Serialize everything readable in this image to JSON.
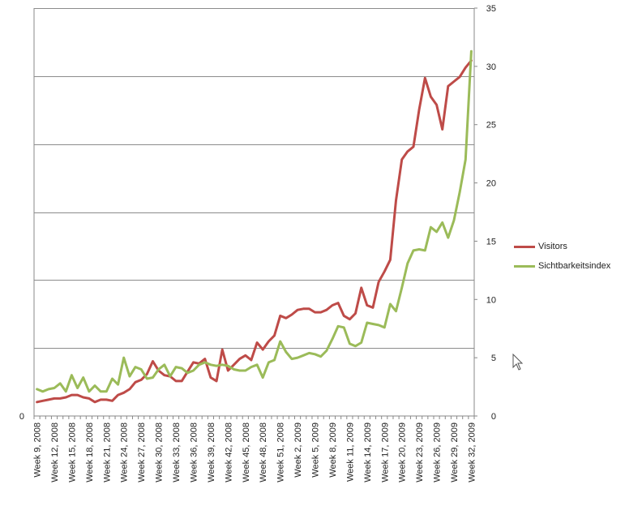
{
  "chart_data": {
    "type": "line",
    "title": "",
    "xlabel": "",
    "ylabel": "",
    "grid": true,
    "legend_position": "right",
    "y_left": {
      "range": [
        0,
        35
      ],
      "ticks": [
        {
          "value": 0,
          "label": "0"
        }
      ]
    },
    "y_right": {
      "range": [
        0,
        35
      ],
      "ticks": [
        0,
        5,
        10,
        15,
        20,
        25,
        30,
        35
      ]
    },
    "grid_lines": [
      5.8333,
      11.6667,
      17.5,
      23.3333,
      29.1667,
      35
    ],
    "x_labels": [
      "Week 9, 2008",
      "Week 12, 2008",
      "Week 15, 2008",
      "Week 18, 2008",
      "Week 21, 2008",
      "Week 24, 2008",
      "Week 27, 2008",
      "Week 30, 2008",
      "Week 33, 2008",
      "Week 36, 2008",
      "Week 39, 2008",
      "Week 42, 2008",
      "Week 45, 2008",
      "Week 48, 2008",
      "Week 51, 2008",
      "Week 2, 2009",
      "Week 5, 2009",
      "Week 8, 2009",
      "Week 11, 2009",
      "Week 14, 2009",
      "Week 17, 2009",
      "Week 20, 2009",
      "Week 23, 2009",
      "Week 26, 2009",
      "Week 29, 2009",
      "Week 32, 2009"
    ],
    "x_label_every": 3,
    "series": [
      {
        "name": "Visitors",
        "color": "#be4b48",
        "values": [
          1.2,
          1.3,
          1.4,
          1.5,
          1.5,
          1.6,
          1.8,
          1.8,
          1.6,
          1.5,
          1.2,
          1.4,
          1.4,
          1.3,
          1.8,
          2.0,
          2.3,
          2.9,
          3.1,
          3.6,
          4.7,
          3.9,
          3.5,
          3.4,
          3.0,
          3.0,
          3.8,
          4.6,
          4.5,
          4.9,
          3.3,
          3.0,
          5.7,
          3.9,
          4.4,
          4.9,
          5.2,
          4.8,
          6.3,
          5.7,
          6.4,
          6.9,
          8.6,
          8.4,
          8.7,
          9.1,
          9.2,
          9.2,
          8.9,
          8.9,
          9.1,
          9.5,
          9.7,
          8.6,
          8.3,
          8.8,
          11.0,
          9.5,
          9.3,
          11.5,
          12.4,
          13.4,
          18.5,
          22.0,
          22.7,
          23.1,
          26.3,
          29.0,
          27.4,
          26.7,
          24.6,
          28.3,
          28.7,
          29.1,
          29.9,
          30.5
        ]
      },
      {
        "name": "Sichtbarkeitsindex",
        "color": "#9bbb59",
        "values": [
          2.3,
          2.1,
          2.3,
          2.4,
          2.8,
          2.1,
          3.5,
          2.4,
          3.3,
          2.1,
          2.6,
          2.1,
          2.1,
          3.2,
          2.7,
          5.0,
          3.4,
          4.2,
          4.0,
          3.2,
          3.3,
          4.0,
          4.4,
          3.4,
          4.2,
          4.1,
          3.7,
          3.9,
          4.4,
          4.6,
          4.4,
          4.3,
          4.4,
          4.3,
          4.0,
          3.9,
          3.9,
          4.2,
          4.4,
          3.3,
          4.6,
          4.8,
          6.4,
          5.5,
          4.9,
          5.0,
          5.2,
          5.4,
          5.3,
          5.1,
          5.6,
          6.6,
          7.7,
          7.6,
          6.2,
          6.0,
          6.3,
          8.0,
          7.9,
          7.8,
          7.6,
          9.6,
          9.0,
          11.0,
          13.1,
          14.2,
          14.3,
          14.2,
          16.2,
          15.8,
          16.6,
          15.3,
          16.8,
          19.2,
          22.0,
          31.3
        ]
      }
    ]
  },
  "icons": {
    "cursor": "mouse-pointer-icon"
  }
}
